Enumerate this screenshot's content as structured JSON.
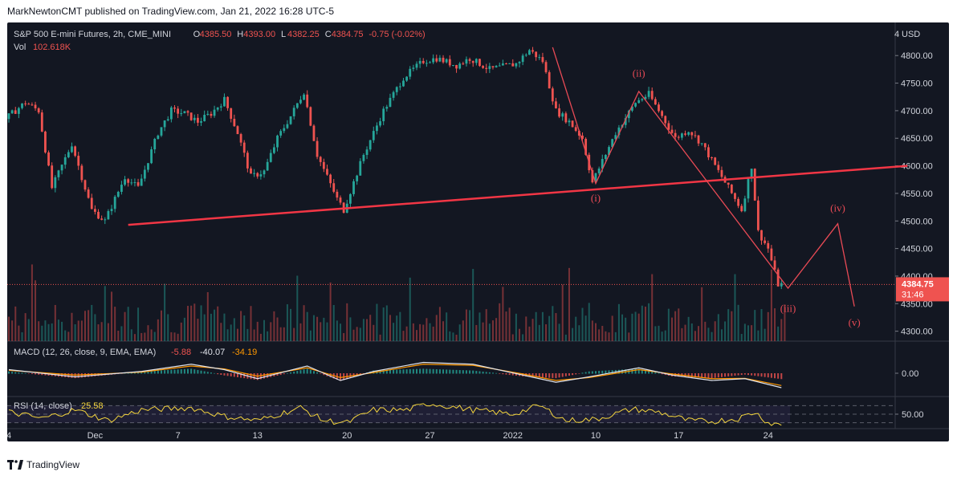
{
  "header": {
    "publisher_line": "MarkNewtonCMT published on TradingView.com, Jan 21, 2022 16:28 UTC-5"
  },
  "footer": {
    "brand": "TradingView"
  },
  "colors": {
    "background": "#131722",
    "up": "#26a69a",
    "down": "#ef5350",
    "annotation": "#e84a55",
    "trendline": "#f23645",
    "macd_line": "#e0e3eb",
    "signal_line": "#ff9800",
    "rsi_line": "#f5d63d"
  },
  "legend": {
    "symbol": "S&P 500 E-mini Futures, 2h, CME_MINI",
    "open_label": "O",
    "open": "4385.50",
    "high_label": "H",
    "high": "4393.00",
    "low_label": "L",
    "low": "4382.25",
    "close_label": "C",
    "close": "4384.75",
    "change": "-0.75 (-0.02%)",
    "vol_label": "Vol",
    "vol": "102.618K"
  },
  "price_axis": {
    "currency": "USD",
    "lock_glyph": "4",
    "last_price": "4384.75",
    "countdown": "31:46"
  },
  "macd_legend": {
    "name": "MACD (12, 26, close, 9, EMA, EMA)",
    "hist": "-5.88",
    "macd": "-40.07",
    "signal": "-34.19"
  },
  "macd_axis_label": "0.00",
  "rsi_legend": {
    "name": "RSI (14, close)",
    "value": "25.58"
  },
  "rsi_axis_label": "50.00",
  "chart_data": {
    "type": "candlestick",
    "title": "S&P 500 E-mini Futures, 2h, CME_MINI",
    "y_ticks": [
      4300,
      4350,
      4400,
      4450,
      4500,
      4550,
      4600,
      4650,
      4700,
      4750,
      4800
    ],
    "y_range": [
      4282,
      4860
    ],
    "x_ticks": [
      "4",
      "Dec",
      "7",
      "13",
      "20",
      "27",
      "2022",
      "10",
      "17",
      "24"
    ],
    "x_tick_bar_index": [
      0,
      26,
      51,
      75,
      102,
      127,
      152,
      177,
      202,
      229
    ],
    "price_path": [
      [
        0,
        4685
      ],
      [
        6,
        4715
      ],
      [
        10,
        4700
      ],
      [
        14,
        4560
      ],
      [
        20,
        4640
      ],
      [
        26,
        4520
      ],
      [
        30,
        4500
      ],
      [
        36,
        4580
      ],
      [
        40,
        4560
      ],
      [
        46,
        4660
      ],
      [
        50,
        4700
      ],
      [
        54,
        4695
      ],
      [
        58,
        4680
      ],
      [
        62,
        4695
      ],
      [
        66,
        4720
      ],
      [
        70,
        4660
      ],
      [
        74,
        4580
      ],
      [
        78,
        4590
      ],
      [
        82,
        4650
      ],
      [
        86,
        4690
      ],
      [
        90,
        4735
      ],
      [
        94,
        4620
      ],
      [
        100,
        4540
      ],
      [
        102,
        4520
      ],
      [
        108,
        4620
      ],
      [
        114,
        4700
      ],
      [
        120,
        4760
      ],
      [
        126,
        4790
      ],
      [
        130,
        4795
      ],
      [
        136,
        4782
      ],
      [
        140,
        4795
      ],
      [
        146,
        4775
      ],
      [
        150,
        4780
      ],
      [
        154,
        4785
      ],
      [
        158,
        4810
      ],
      [
        162,
        4790
      ],
      [
        166,
        4700
      ],
      [
        170,
        4680
      ],
      [
        174,
        4650
      ],
      [
        177,
        4570
      ],
      [
        184,
        4660
      ],
      [
        190,
        4715
      ],
      [
        194,
        4730
      ],
      [
        197,
        4700
      ],
      [
        202,
        4650
      ],
      [
        206,
        4665
      ],
      [
        210,
        4640
      ],
      [
        214,
        4600
      ],
      [
        218,
        4560
      ],
      [
        222,
        4520
      ],
      [
        225,
        4600
      ],
      [
        227,
        4480
      ],
      [
        230,
        4450
      ],
      [
        233,
        4385
      ]
    ],
    "volume_bars": 235,
    "annotations": {
      "wave_labels": [
        "(i)",
        "(ii)",
        "(iii)",
        "(iv)",
        "(v)"
      ],
      "wave_points": [
        [
          164,
          4815
        ],
        [
          177,
          4568
        ],
        [
          190,
          4735
        ],
        [
          235,
          4378
        ],
        [
          250,
          4495
        ],
        [
          255,
          4345
        ]
      ],
      "trendline": [
        [
          36,
          4493
        ],
        [
          271,
          4600
        ]
      ],
      "last_price_line": 4384.75
    },
    "macd": {
      "hist": -5.88,
      "macd": -40.07,
      "signal": -34.19,
      "macd_path": [
        [
          0,
          10
        ],
        [
          20,
          -10
        ],
        [
          40,
          5
        ],
        [
          55,
          25
        ],
        [
          65,
          10
        ],
        [
          75,
          -15
        ],
        [
          90,
          20
        ],
        [
          100,
          -20
        ],
        [
          110,
          5
        ],
        [
          125,
          30
        ],
        [
          140,
          25
        ],
        [
          155,
          -5
        ],
        [
          165,
          -25
        ],
        [
          175,
          -10
        ],
        [
          190,
          15
        ],
        [
          200,
          -5
        ],
        [
          212,
          -20
        ],
        [
          222,
          -15
        ],
        [
          233,
          -40
        ]
      ],
      "signal_path": [
        [
          0,
          8
        ],
        [
          20,
          -5
        ],
        [
          40,
          3
        ],
        [
          55,
          20
        ],
        [
          65,
          12
        ],
        [
          75,
          -8
        ],
        [
          90,
          15
        ],
        [
          100,
          -12
        ],
        [
          110,
          2
        ],
        [
          125,
          25
        ],
        [
          140,
          22
        ],
        [
          155,
          -2
        ],
        [
          165,
          -20
        ],
        [
          175,
          -12
        ],
        [
          190,
          10
        ],
        [
          200,
          -2
        ],
        [
          212,
          -15
        ],
        [
          222,
          -14
        ],
        [
          233,
          -34
        ]
      ]
    },
    "rsi": {
      "value": 25.58,
      "path": [
        [
          0,
          55
        ],
        [
          10,
          40
        ],
        [
          20,
          60
        ],
        [
          30,
          35
        ],
        [
          40,
          60
        ],
        [
          55,
          65
        ],
        [
          65,
          45
        ],
        [
          75,
          35
        ],
        [
          88,
          65
        ],
        [
          95,
          35
        ],
        [
          102,
          30
        ],
        [
          110,
          60
        ],
        [
          120,
          60
        ],
        [
          127,
          75
        ],
        [
          140,
          60
        ],
        [
          152,
          50
        ],
        [
          160,
          70
        ],
        [
          168,
          35
        ],
        [
          177,
          38
        ],
        [
          188,
          62
        ],
        [
          196,
          55
        ],
        [
          205,
          35
        ],
        [
          212,
          33
        ],
        [
          220,
          40
        ],
        [
          225,
          55
        ],
        [
          229,
          30
        ],
        [
          233,
          25.58
        ]
      ]
    }
  }
}
